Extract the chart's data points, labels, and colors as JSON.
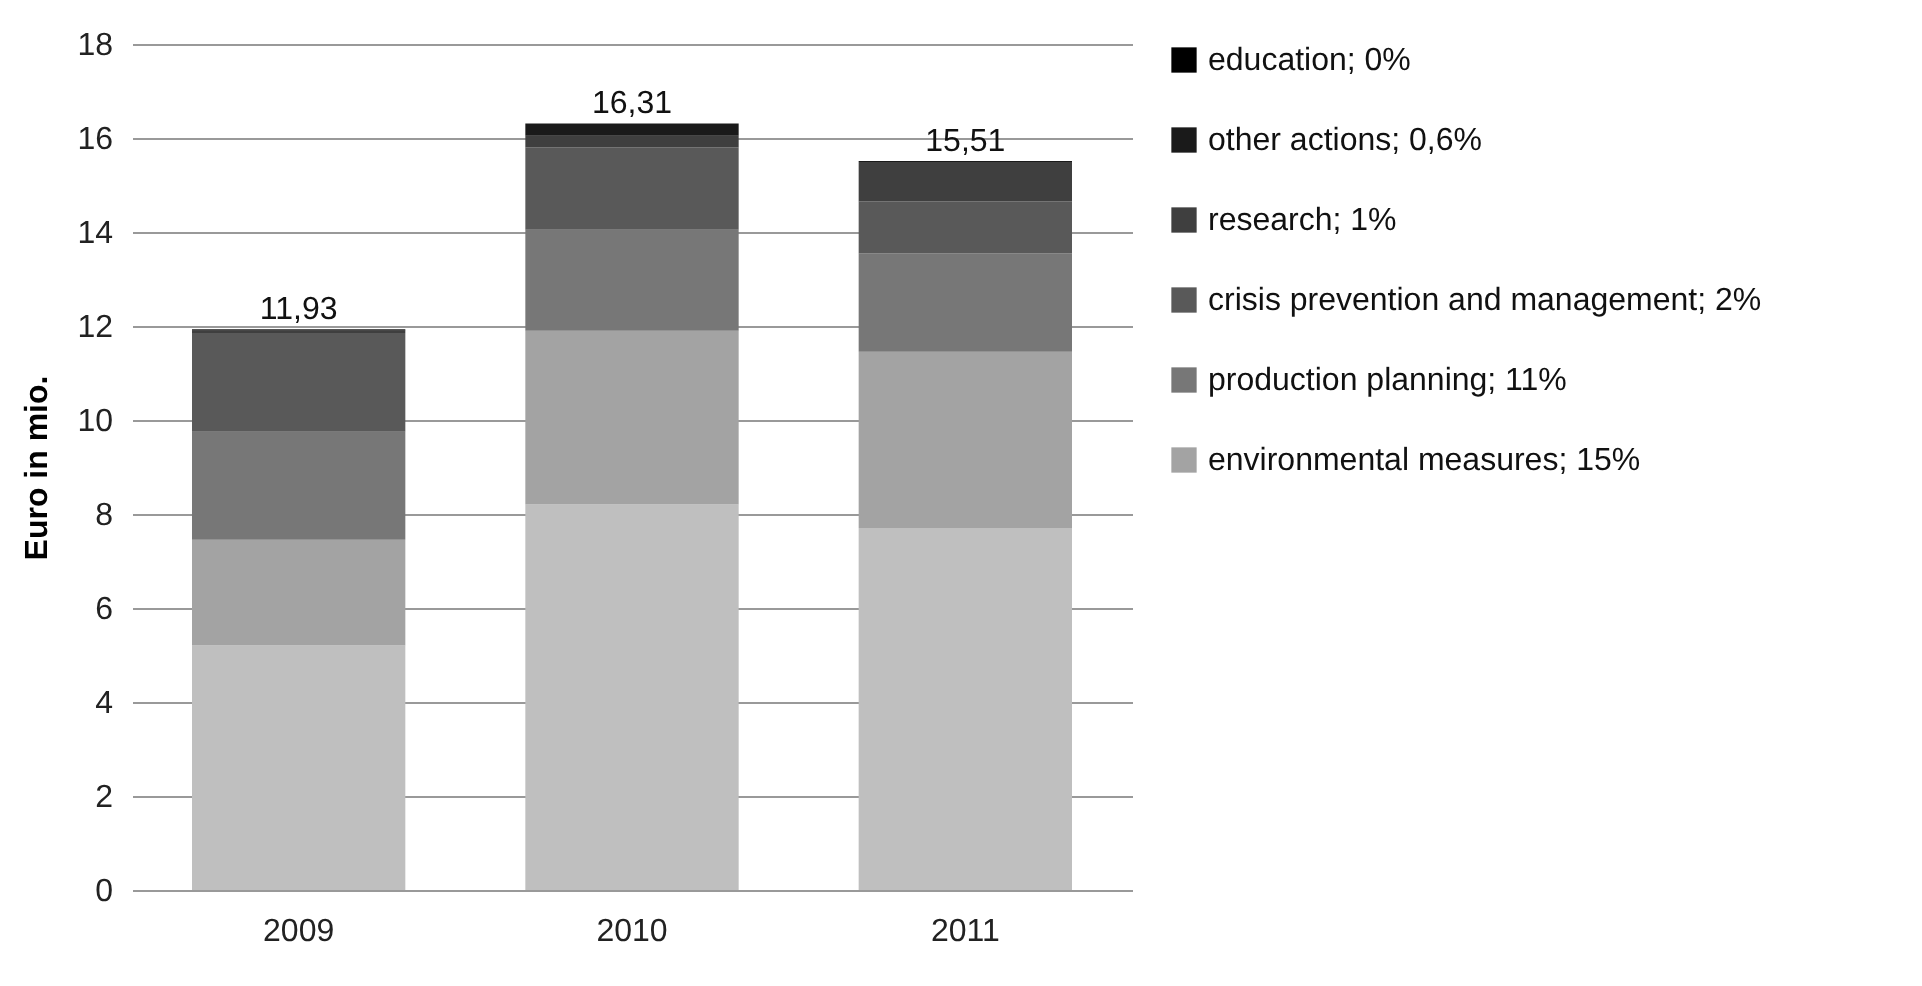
{
  "chart_data": {
    "type": "bar",
    "stacked": true,
    "ylabel": "Euro in mio.",
    "categories": [
      "2009",
      "2010",
      "2011"
    ],
    "series": [
      {
        "color": "#bfbfbf",
        "values": [
          5.2,
          8.2,
          7.7
        ]
      },
      {
        "name": "environmental measures; 15%",
        "color": "#a3a3a3",
        "values": [
          2.25,
          3.7,
          3.75
        ]
      },
      {
        "name": "production planning; 11%",
        "color": "#777777",
        "values": [
          2.3,
          2.15,
          2.1
        ]
      },
      {
        "name": " crisis prevention and management; 2%",
        "color": "#595959",
        "values": [
          2.1,
          1.75,
          1.1
        ]
      },
      {
        "name": "research; 1%",
        "color": "#3f3f3f",
        "values": [
          0.05,
          0.25,
          0.84
        ]
      },
      {
        "name": "other actions; 0,6%",
        "color": "#1a1a1a",
        "values": [
          0.03,
          0.26,
          0.02
        ]
      },
      {
        "name": "education; 0%",
        "color": "#000000",
        "values": [
          0,
          0,
          0
        ]
      }
    ],
    "totals": [
      "11,93",
      "16,31",
      "15,51"
    ],
    "ylim": [
      0,
      18
    ],
    "yticks": [
      0,
      2,
      4,
      6,
      8,
      10,
      12,
      14,
      16,
      18
    ],
    "grid": "y",
    "legend": "right"
  }
}
